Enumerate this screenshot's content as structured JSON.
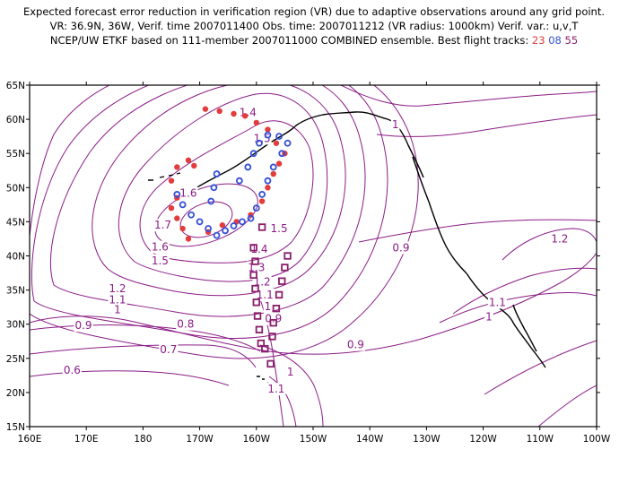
{
  "header": {
    "line1": "Expected forecast error reduction in verification region (VR) due to adaptive observations around any grid point.",
    "line2": "VR: 36.9N, 36W, Verif. time 2007011400   Obs. time: 2007011212 (VR radius: 1000km)   Verif. var.: u,v,T",
    "line3_prefix": "NCEP/UW ETKF based on 111-member 2007011000 COMBINED ensemble.  Best flight tracks:",
    "track_a": "23",
    "track_b": "08",
    "track_c": "55"
  },
  "axes": {
    "lat_labels": [
      "65N",
      "60N",
      "55N",
      "50N",
      "45N",
      "40N",
      "35N",
      "30N",
      "25N",
      "20N",
      "15N"
    ],
    "lon_labels": [
      "160E",
      "170E",
      "180",
      "170W",
      "160W",
      "150W",
      "140W",
      "130W",
      "120W",
      "110W",
      "100W"
    ]
  },
  "contour_labels": [
    {
      "text": "1.4",
      "lon": 198.5,
      "lat": 61.0
    },
    {
      "text": "1.5",
      "lon": 201.0,
      "lat": 57.2
    },
    {
      "text": "1",
      "lon": 224.5,
      "lat": 59.2
    },
    {
      "text": "1.6",
      "lon": 188.0,
      "lat": 49.2
    },
    {
      "text": "1.7",
      "lon": 183.5,
      "lat": 44.5
    },
    {
      "text": "1.6",
      "lon": 183.0,
      "lat": 41.3
    },
    {
      "text": "1.5",
      "lon": 183.0,
      "lat": 39.3
    },
    {
      "text": "1.5",
      "lon": 204.0,
      "lat": 44.0
    },
    {
      "text": "1.4",
      "lon": 200.5,
      "lat": 41.0
    },
    {
      "text": "1.3",
      "lon": 200.0,
      "lat": 38.3
    },
    {
      "text": "1.2",
      "lon": 201.0,
      "lat": 36.2
    },
    {
      "text": "1.1",
      "lon": 201.5,
      "lat": 34.3
    },
    {
      "text": "1.2",
      "lon": 175.5,
      "lat": 35.2
    },
    {
      "text": "1.1",
      "lon": 175.5,
      "lat": 33.6
    },
    {
      "text": "1",
      "lon": 175.5,
      "lat": 32.1
    },
    {
      "text": "0.9",
      "lon": 169.5,
      "lat": 29.8
    },
    {
      "text": "0.8",
      "lon": 187.5,
      "lat": 30.0
    },
    {
      "text": "0.7",
      "lon": 184.5,
      "lat": 26.3
    },
    {
      "text": "0.6",
      "lon": 167.5,
      "lat": 23.3
    },
    {
      "text": "0.9",
      "lon": 225.5,
      "lat": 41.2
    },
    {
      "text": "1.2",
      "lon": 253.5,
      "lat": 42.5
    },
    {
      "text": "1.1",
      "lon": 242.5,
      "lat": 33.2
    },
    {
      "text": "1",
      "lon": 241.0,
      "lat": 31.1
    },
    {
      "text": "1",
      "lon": 202.0,
      "lat": 32.6
    },
    {
      "text": "0.9",
      "lon": 203.0,
      "lat": 30.8
    },
    {
      "text": "0.9",
      "lon": 217.5,
      "lat": 27.0
    },
    {
      "text": "1",
      "lon": 206.0,
      "lat": 23.0
    },
    {
      "text": "1.1",
      "lon": 203.5,
      "lat": 20.5
    }
  ],
  "tracks": {
    "track_23": {
      "color": "#e23c3c",
      "marker": "filled-circle",
      "points": [
        [
          186,
          53
        ],
        [
          185,
          51
        ],
        [
          186,
          48.5
        ],
        [
          185,
          47
        ],
        [
          186,
          45.5
        ],
        [
          187,
          44
        ],
        [
          188,
          42.5
        ],
        [
          191.5,
          43.5
        ],
        [
          194,
          44.5
        ],
        [
          196.5,
          45
        ],
        [
          199,
          46
        ],
        [
          201,
          48
        ],
        [
          202,
          50
        ],
        [
          203,
          52
        ],
        [
          204,
          53.5
        ],
        [
          205,
          55
        ],
        [
          203.5,
          56.5
        ],
        [
          202,
          58.5
        ],
        [
          200,
          59.5
        ],
        [
          198,
          60.5
        ],
        [
          196,
          60.8
        ],
        [
          193.5,
          61.2
        ],
        [
          191,
          61.5
        ],
        [
          188,
          54
        ],
        [
          189,
          53.2
        ]
      ]
    },
    "track_08": {
      "color": "#3450d8",
      "marker": "open-circle",
      "points": [
        [
          186,
          49
        ],
        [
          187,
          47.5
        ],
        [
          188.5,
          46
        ],
        [
          190,
          45
        ],
        [
          191.5,
          44
        ],
        [
          193,
          43
        ],
        [
          194.5,
          43.7
        ],
        [
          196,
          44.4
        ],
        [
          197.5,
          45
        ],
        [
          199,
          45.5
        ],
        [
          200,
          47
        ],
        [
          201,
          49
        ],
        [
          202,
          51
        ],
        [
          203,
          53
        ],
        [
          204.5,
          55
        ],
        [
          205.5,
          56.5
        ],
        [
          204,
          57.5
        ],
        [
          202,
          57.7
        ],
        [
          200.5,
          56.5
        ],
        [
          199.5,
          55
        ],
        [
          198.5,
          53
        ],
        [
          197,
          51
        ],
        [
          193,
          52
        ],
        [
          192.5,
          50
        ],
        [
          192,
          48
        ]
      ]
    },
    "track_55": {
      "color": "#8a1f6a",
      "marker": "open-square",
      "points": [
        [
          201,
          44.2
        ],
        [
          199.5,
          41.2
        ],
        [
          199.8,
          39.2
        ],
        [
          199.5,
          37.2
        ],
        [
          199.8,
          35.2
        ],
        [
          200,
          33.2
        ],
        [
          200.2,
          31.2
        ],
        [
          200.5,
          29.2
        ],
        [
          200.8,
          27.2
        ],
        [
          201.5,
          26.4
        ],
        [
          202.5,
          24.2
        ],
        [
          202.8,
          28.2
        ],
        [
          203,
          30.2
        ],
        [
          203.5,
          32.3
        ],
        [
          204,
          34.3
        ],
        [
          204.5,
          36.3
        ],
        [
          205,
          38.3
        ],
        [
          205.5,
          40
        ]
      ]
    }
  }
}
